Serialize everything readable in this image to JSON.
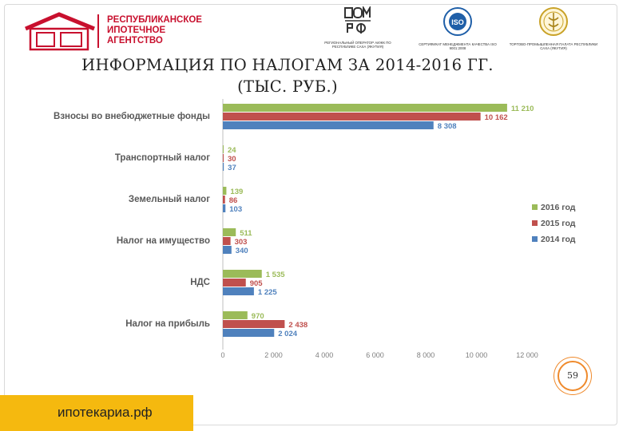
{
  "header": {
    "logo_lines": [
      "РЕСПУБЛИКАНСКОЕ",
      "ИПОТЕЧНОЕ",
      "АГЕНТСТВО"
    ],
    "partners": [
      {
        "icon": "dom-rf-logo-icon",
        "caption": "РЕГИОНАЛЬНЫЙ ОПЕРАТОР АИЖК ПО РЕСПУБЛИКЕ САХА (ЯКУТИЯ)"
      },
      {
        "icon": "iso-certificate-icon",
        "caption": "СЕРТИФИКАТ МЕНЕДЖМЕНТА КАЧЕСТВА ISO 9001:2008"
      },
      {
        "icon": "chamber-of-commerce-icon",
        "caption": "ТОРГОВО-ПРОМЫШЛЕННАЯ ПАЛАТА РЕСПУБЛИКИ САХА (ЯКУТИЯ)"
      }
    ]
  },
  "title_line1": "ИНФОРМАЦИЯ ПО НАЛОГАМ ЗА 2014-2016 ГГ.",
  "title_line2": "(ТЫС. РУБ.)",
  "page_number": "59",
  "site": "ипотекариа.рф",
  "chart_data": {
    "type": "bar",
    "orientation": "horizontal",
    "categories": [
      "Взносы во внебюджетные фонды",
      "Транспортный налог",
      "Земельный налог",
      "Налог на имущество",
      "НДС",
      "Налог на прибыль"
    ],
    "series": [
      {
        "name": "2016 год",
        "color": "#9bbb59",
        "values": [
          11210,
          24,
          139,
          511,
          1535,
          970
        ],
        "labels": [
          "11 210",
          "24",
          "139",
          "511",
          "1 535",
          "970"
        ]
      },
      {
        "name": "2015 год",
        "color": "#c0504d",
        "values": [
          10162,
          30,
          86,
          303,
          905,
          2438
        ],
        "labels": [
          "10 162",
          "30",
          "86",
          "303",
          "905",
          "2 438"
        ]
      },
      {
        "name": "2014 год",
        "color": "#4f81bd",
        "values": [
          8308,
          37,
          103,
          340,
          1225,
          2024
        ],
        "labels": [
          "8 308",
          "37",
          "103",
          "340",
          "1 225",
          "2 024"
        ]
      }
    ],
    "xlim": [
      0,
      12000
    ],
    "xticks": [
      0,
      2000,
      4000,
      6000,
      8000,
      10000,
      12000
    ],
    "xtick_labels": [
      "0",
      "2 000",
      "4 000",
      "6 000",
      "8 000",
      "10 000",
      "12 000"
    ],
    "legend_position": "right",
    "grid": false
  }
}
